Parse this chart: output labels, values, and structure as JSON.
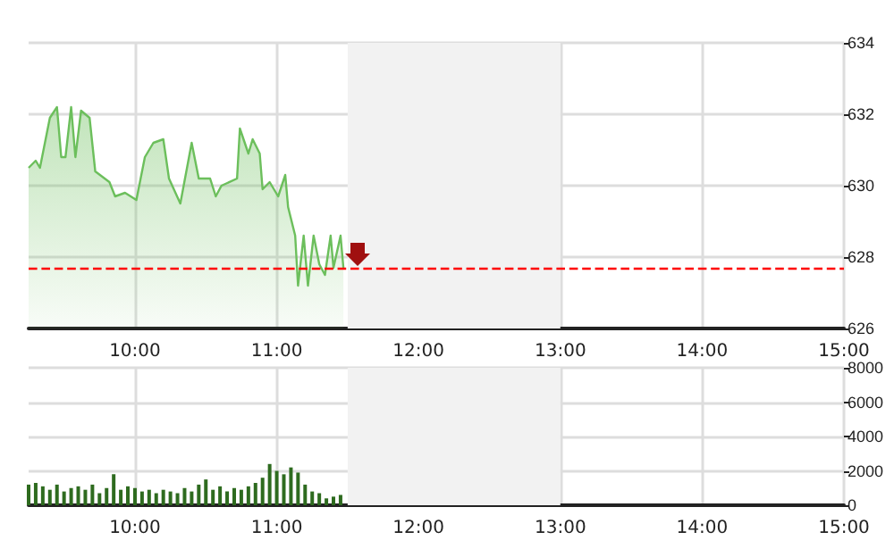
{
  "chart_data": [
    {
      "type": "area",
      "x": [
        9.25,
        9.3,
        9.33,
        9.4,
        9.45,
        9.48,
        9.51,
        9.55,
        9.58,
        9.62,
        9.68,
        9.72,
        9.82,
        9.86,
        9.93,
        10.01,
        10.07,
        10.13,
        10.2,
        10.24,
        10.32,
        10.4,
        10.45,
        10.53,
        10.57,
        10.61,
        10.72,
        10.74,
        10.8,
        10.83,
        10.88,
        10.9,
        10.95,
        11.01,
        11.06,
        11.08,
        11.13,
        11.15,
        11.19,
        11.22,
        11.26,
        11.3,
        11.34,
        11.38,
        11.4,
        11.45,
        11.47
      ],
      "series": [
        {
          "color": "#6cbf5c",
          "values": [
            630.5,
            630.7,
            630.5,
            631.9,
            632.2,
            630.8,
            630.8,
            632.2,
            630.8,
            632.1,
            631.9,
            630.4,
            630.1,
            629.7,
            629.8,
            629.6,
            630.8,
            631.2,
            631.3,
            630.2,
            629.5,
            631.2,
            630.2,
            630.2,
            629.7,
            630.0,
            630.2,
            631.6,
            630.9,
            631.3,
            630.9,
            629.9,
            630.1,
            629.7,
            630.3,
            629.4,
            628.6,
            627.2,
            628.6,
            627.2,
            628.6,
            627.8,
            627.5,
            628.6,
            627.7,
            628.6,
            627.7
          ]
        }
      ],
      "xlim": [
        9.25,
        15
      ],
      "xticks": [
        {
          "value": 10,
          "label": "10:00"
        },
        {
          "value": 11,
          "label": "11:00"
        },
        {
          "value": 12,
          "label": "12:00"
        },
        {
          "value": 13,
          "label": "13:00"
        },
        {
          "value": 14,
          "label": "14:00"
        },
        {
          "value": 15,
          "label": "15:00"
        }
      ],
      "ylim": [
        626,
        634
      ],
      "yticks": [
        626,
        628,
        630,
        632,
        634
      ],
      "grid": true,
      "ref_lines": [
        {
          "axis": "y",
          "value": 627.7,
          "color": "#ff0000",
          "line_style": "dashed"
        }
      ],
      "bands": [
        {
          "axis": "x",
          "from": 11.5,
          "to": 13,
          "color": "#f2f2f2"
        }
      ]
    },
    {
      "type": "bar",
      "x": [
        9.25,
        9.3,
        9.35,
        9.4,
        9.45,
        9.5,
        9.55,
        9.6,
        9.65,
        9.7,
        9.75,
        9.8,
        9.85,
        9.9,
        9.95,
        10,
        10.05,
        10.1,
        10.15,
        10.2,
        10.25,
        10.3,
        10.35,
        10.4,
        10.45,
        10.5,
        10.55,
        10.6,
        10.65,
        10.7,
        10.75,
        10.8,
        10.85,
        10.9,
        10.95,
        11,
        11.05,
        11.1,
        11.15,
        11.2,
        11.25,
        11.3,
        11.35,
        11.4,
        11.45
      ],
      "values": [
        1200,
        1300,
        1100,
        900,
        1200,
        800,
        1000,
        1100,
        900,
        1200,
        700,
        1000,
        1800,
        900,
        1100,
        1000,
        800,
        900,
        700,
        900,
        800,
        700,
        1000,
        800,
        1200,
        1500,
        900,
        1100,
        800,
        1000,
        900,
        1100,
        1300,
        1600,
        2400,
        2000,
        1800,
        2200,
        1900,
        1200,
        800,
        700,
        400,
        500,
        600
      ],
      "color": "#2e6b1f",
      "xlim": [
        9.25,
        15
      ],
      "xticks": [
        {
          "value": 10,
          "label": "10:00"
        },
        {
          "value": 11,
          "label": "11:00"
        },
        {
          "value": 12,
          "label": "12:00"
        },
        {
          "value": 13,
          "label": "13:00"
        },
        {
          "value": 14,
          "label": "14:00"
        },
        {
          "value": 15,
          "label": "15:00"
        }
      ],
      "ylim": [
        0,
        8000
      ],
      "yticks": [
        0,
        2000,
        4000,
        6000,
        8000
      ],
      "grid": true,
      "bands": [
        {
          "axis": "x",
          "from": 11.5,
          "to": 13,
          "color": "#f2f2f2"
        }
      ]
    }
  ]
}
